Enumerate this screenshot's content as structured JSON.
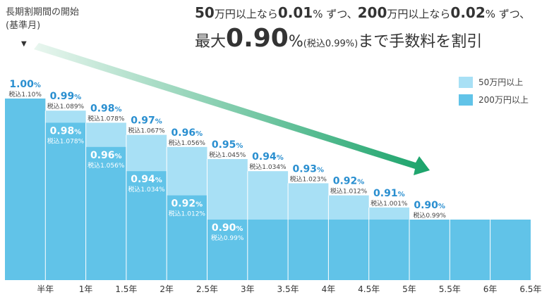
{
  "header": {
    "axis_note_line1": "長期割期間の開始",
    "axis_note_line2": "(基準月)",
    "axis_marker": "▼",
    "line1_a": "50",
    "line1_b": "万円以上なら",
    "line1_c": "0.01",
    "line1_d": "% ずつ、",
    "line1_e": "200",
    "line1_f": "万円以上なら",
    "line1_g": "0.02",
    "line1_h": "% ずつ、",
    "line2_a": "最大",
    "line2_b": "0.90",
    "line2_c": "%",
    "line2_d": "(税込0.99%)",
    "line2_e": "まで手数料を割引"
  },
  "colors": {
    "light": "#a8e0f5",
    "dark": "#61c3e8",
    "label_blue": "#2a8fd0",
    "arrow_start": "#e9f6ef",
    "arrow_end": "#1aa36a"
  },
  "chart_data": {
    "type": "bar",
    "x_ticks": [
      "半年",
      "1年",
      "1.5年",
      "2年",
      "2.5年",
      "3年",
      "3.5年",
      "4年",
      "4.5年",
      "5年",
      "5.5年",
      "6年",
      "6.5年"
    ],
    "series": [
      {
        "name": "50万円以上",
        "values": [
          1.0,
          0.99,
          0.98,
          0.97,
          0.96,
          0.95,
          0.94,
          0.93,
          0.92,
          0.91,
          0.9,
          0.9,
          0.9
        ],
        "labels": [
          "1.00",
          "0.99",
          "0.98",
          "0.97",
          "0.96",
          "0.95",
          "0.94",
          "0.93",
          "0.92",
          "0.91",
          "0.90",
          "",
          ""
        ],
        "tax_labels": [
          "税込1.10%",
          "税込1.089%",
          "税込1.078%",
          "税込1.067%",
          "税込1.056%",
          "税込1.045%",
          "税込1.034%",
          "税込1.023%",
          "税込1.012%",
          "税込1.001%",
          "税込0.99%",
          "",
          ""
        ]
      },
      {
        "name": "200万円以上",
        "values": [
          1.0,
          0.98,
          0.96,
          0.94,
          0.92,
          0.9,
          0.9,
          0.9,
          0.9,
          0.9,
          0.9,
          0.9,
          0.9
        ],
        "labels": [
          "",
          "0.98",
          "0.96",
          "0.94",
          "0.92",
          "0.90",
          "",
          "",
          "",
          "",
          "",
          "",
          ""
        ],
        "tax_labels": [
          "",
          "税込1.078%",
          "税込1.056%",
          "税込1.034%",
          "税込1.012%",
          "税込0.99%",
          "",
          "",
          "",
          "",
          "",
          "",
          ""
        ]
      }
    ],
    "percent_sign": "%"
  }
}
